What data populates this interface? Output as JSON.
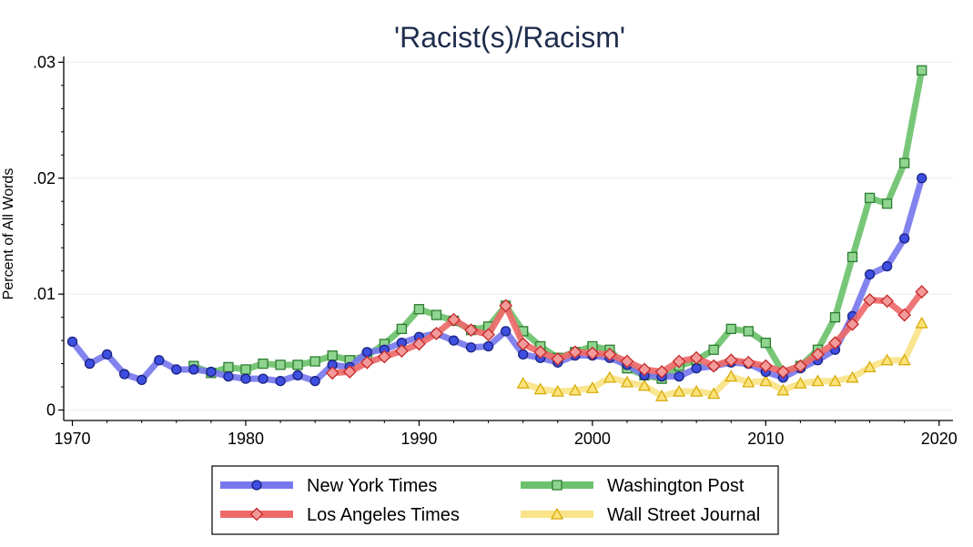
{
  "chart_data": {
    "type": "line",
    "title": "'Racist(s)/Racism'",
    "ylabel": "Percent of All Words",
    "xlabel": "",
    "xlim": [
      1969.5,
      2020.8
    ],
    "ylim": [
      -0.0009,
      0.0305
    ],
    "x_ticks": [
      1970,
      1980,
      1990,
      2000,
      2010,
      2020
    ],
    "y_ticks": [
      0,
      0.01,
      0.02,
      0.03
    ],
    "y_tick_labels": [
      "0",
      ".01",
      ".02",
      ".03"
    ],
    "grid": true,
    "legend_position": "bottom",
    "series": [
      {
        "name": "New York Times",
        "color": "#7878ee",
        "marker_fill": "#3d4ee0",
        "marker": "circle",
        "x": [
          1970,
          1971,
          1972,
          1973,
          1974,
          1975,
          1976,
          1977,
          1978,
          1979,
          1980,
          1981,
          1982,
          1983,
          1984,
          1985,
          1986,
          1987,
          1988,
          1989,
          1990,
          1991,
          1992,
          1993,
          1994,
          1995,
          1996,
          1997,
          1998,
          1999,
          2000,
          2001,
          2002,
          2003,
          2004,
          2005,
          2006,
          2007,
          2008,
          2009,
          2010,
          2011,
          2012,
          2013,
          2014,
          2015,
          2016,
          2017,
          2018,
          2019
        ],
        "y": [
          0.0059,
          0.004,
          0.0048,
          0.0031,
          0.0026,
          0.0043,
          0.0035,
          0.0035,
          0.0033,
          0.0029,
          0.0027,
          0.0027,
          0.0025,
          0.003,
          0.0025,
          0.0039,
          0.0037,
          0.005,
          0.0052,
          0.0058,
          0.0063,
          0.0066,
          0.006,
          0.0054,
          0.0055,
          0.0068,
          0.0048,
          0.0045,
          0.0041,
          0.0047,
          0.0047,
          0.0045,
          0.0039,
          0.003,
          0.0029,
          0.0029,
          0.0036,
          0.0038,
          0.0041,
          0.004,
          0.0033,
          0.0028,
          0.0036,
          0.0043,
          0.0052,
          0.0081,
          0.0117,
          0.0124,
          0.0148,
          0.02
        ]
      },
      {
        "name": "Washington Post",
        "color": "#6cc26c",
        "marker_fill": "#8fd48f",
        "marker": "square",
        "x": [
          1977,
          1978,
          1979,
          1980,
          1981,
          1982,
          1983,
          1984,
          1985,
          1986,
          1987,
          1988,
          1989,
          1990,
          1991,
          1992,
          1993,
          1994,
          1995,
          1996,
          1997,
          1998,
          1999,
          2000,
          2001,
          2002,
          2003,
          2004,
          2005,
          2006,
          2007,
          2008,
          2009,
          2010,
          2011,
          2012,
          2013,
          2014,
          2015,
          2016,
          2017,
          2018,
          2019
        ],
        "y": [
          0.0038,
          0.0032,
          0.0037,
          0.0035,
          0.004,
          0.0039,
          0.0039,
          0.0042,
          0.0047,
          0.0043,
          0.0047,
          0.0057,
          0.007,
          0.0087,
          0.0082,
          0.0077,
          0.0069,
          0.0072,
          0.009,
          0.0068,
          0.0055,
          0.0045,
          0.005,
          0.0055,
          0.0052,
          0.0036,
          0.003,
          0.0027,
          0.0038,
          0.0043,
          0.0052,
          0.007,
          0.0068,
          0.0058,
          0.0032,
          0.0038,
          0.0052,
          0.008,
          0.0132,
          0.0183,
          0.0178,
          0.0213,
          0.0293
        ]
      },
      {
        "name": "Los Angeles Times",
        "color": "#ee6a6a",
        "marker_fill": "#f39a9a",
        "marker": "diamond",
        "x": [
          1985,
          1986,
          1987,
          1988,
          1989,
          1990,
          1991,
          1992,
          1993,
          1994,
          1995,
          1996,
          1997,
          1998,
          1999,
          2000,
          2001,
          2002,
          2003,
          2004,
          2005,
          2006,
          2007,
          2008,
          2009,
          2010,
          2011,
          2012,
          2013,
          2014,
          2015,
          2016,
          2017,
          2018,
          2019
        ],
        "y": [
          0.0032,
          0.0033,
          0.0041,
          0.0046,
          0.0051,
          0.0057,
          0.0066,
          0.0078,
          0.0069,
          0.0065,
          0.009,
          0.0057,
          0.005,
          0.0044,
          0.005,
          0.0049,
          0.0048,
          0.0042,
          0.0035,
          0.0033,
          0.0042,
          0.0045,
          0.0038,
          0.0043,
          0.0041,
          0.0038,
          0.0033,
          0.0038,
          0.0048,
          0.0058,
          0.0074,
          0.0095,
          0.0094,
          0.0082,
          0.0102
        ]
      },
      {
        "name": "Wall Street Journal",
        "color": "#fae388",
        "marker_fill": "#fbe27a",
        "marker": "triangle",
        "x": [
          1996,
          1997,
          1998,
          1999,
          2000,
          2001,
          2002,
          2003,
          2004,
          2005,
          2006,
          2007,
          2008,
          2009,
          2010,
          2011,
          2012,
          2013,
          2014,
          2015,
          2016,
          2017,
          2018,
          2019
        ],
        "y": [
          0.0023,
          0.0018,
          0.0016,
          0.0017,
          0.0019,
          0.0028,
          0.0024,
          0.0021,
          0.0012,
          0.0016,
          0.0016,
          0.0014,
          0.0029,
          0.0024,
          0.0025,
          0.0017,
          0.0023,
          0.0025,
          0.0025,
          0.0028,
          0.0037,
          0.0043,
          0.0043,
          0.0075
        ]
      }
    ]
  }
}
